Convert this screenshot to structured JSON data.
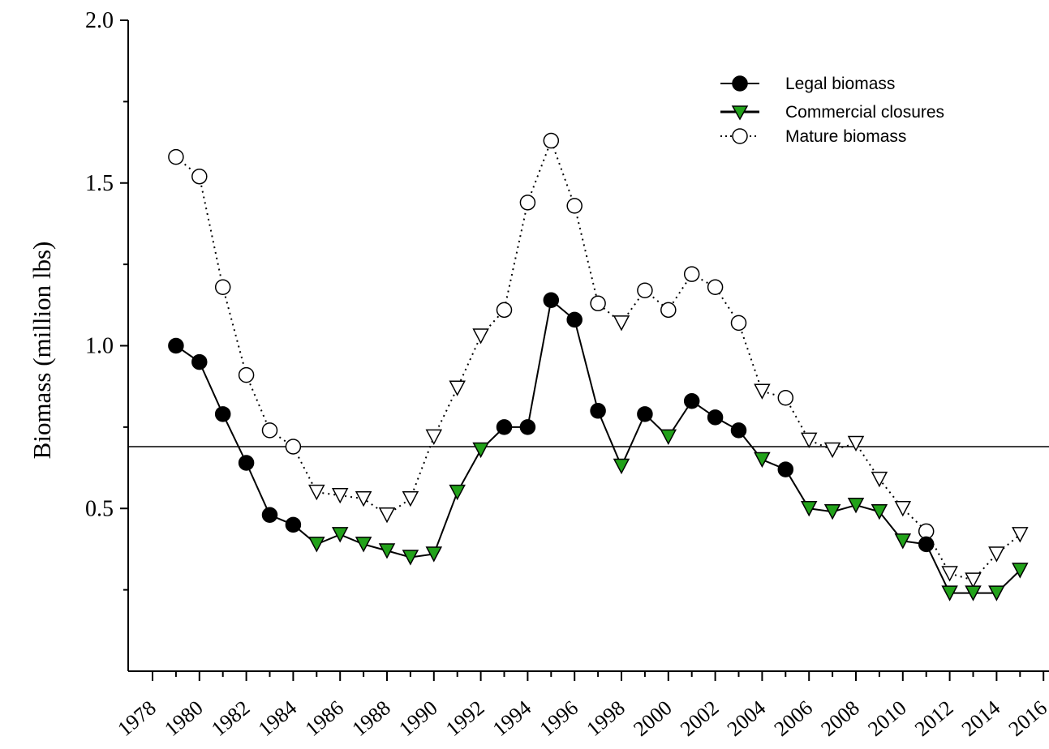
{
  "chart_data": {
    "type": "line",
    "ylabel": "Biomass (million lbs)",
    "xlabel": "",
    "ylim": [
      0,
      2.0
    ],
    "xlim": [
      1977,
      2016.3
    ],
    "yticks": [
      0.5,
      1.0,
      1.5,
      2.0
    ],
    "ytick_labels": [
      "0.5",
      "1.0",
      "1.5",
      "2.0"
    ],
    "xticks": [
      1978,
      1980,
      1982,
      1984,
      1986,
      1988,
      1990,
      1992,
      1994,
      1996,
      1998,
      2000,
      2002,
      2004,
      2006,
      2008,
      2010,
      2012,
      2014,
      2016
    ],
    "xtick_labels": [
      "1978",
      "1980",
      "1982",
      "1984",
      "1986",
      "1988",
      "1990",
      "1992",
      "1994",
      "1996",
      "1998",
      "2000",
      "2002",
      "2004",
      "2006",
      "2008",
      "2010",
      "2012",
      "2014",
      "2016"
    ],
    "reference_line": 0.69,
    "legend": {
      "position": "top-right"
    },
    "grid": false,
    "series": [
      {
        "name": "Legal biomass",
        "line_style": "solid",
        "marker": "circle",
        "closure_color": "#22a21a",
        "x": [
          1979,
          1980,
          1981,
          1982,
          1983,
          1984,
          1985,
          1986,
          1987,
          1988,
          1989,
          1990,
          1991,
          1992,
          1993,
          1994,
          1995,
          1996,
          1997,
          1998,
          1999,
          2000,
          2001,
          2002,
          2003,
          2004,
          2005,
          2006,
          2007,
          2008,
          2009,
          2010,
          2011,
          2012,
          2013,
          2014,
          2015
        ],
        "values": [
          1.0,
          0.95,
          0.79,
          0.64,
          0.48,
          0.45,
          0.39,
          0.42,
          0.39,
          0.37,
          0.35,
          0.36,
          0.55,
          0.68,
          0.75,
          0.75,
          1.14,
          1.08,
          0.8,
          0.63,
          0.79,
          0.72,
          0.83,
          0.78,
          0.74,
          0.65,
          0.62,
          0.5,
          0.49,
          0.51,
          0.49,
          0.4,
          0.39,
          0.24,
          0.24,
          0.24,
          0.31
        ],
        "closures": [
          false,
          false,
          false,
          false,
          false,
          false,
          true,
          true,
          true,
          true,
          true,
          true,
          true,
          true,
          false,
          false,
          false,
          false,
          false,
          true,
          false,
          true,
          false,
          false,
          false,
          true,
          false,
          true,
          true,
          true,
          true,
          true,
          false,
          true,
          true,
          true,
          true
        ]
      },
      {
        "name": "Mature biomass",
        "line_style": "dotted",
        "marker": "open-circle",
        "x": [
          1979,
          1980,
          1981,
          1982,
          1983,
          1984,
          1985,
          1986,
          1987,
          1988,
          1989,
          1990,
          1991,
          1992,
          1993,
          1994,
          1995,
          1996,
          1997,
          1998,
          1999,
          2000,
          2001,
          2002,
          2003,
          2004,
          2005,
          2006,
          2007,
          2008,
          2009,
          2010,
          2011,
          2012,
          2013,
          2014,
          2015
        ],
        "values": [
          1.58,
          1.52,
          1.18,
          0.91,
          0.74,
          0.69,
          0.55,
          0.54,
          0.53,
          0.48,
          0.53,
          0.72,
          0.87,
          1.03,
          1.11,
          1.44,
          1.63,
          1.43,
          1.13,
          1.07,
          1.17,
          1.11,
          1.22,
          1.18,
          1.07,
          0.86,
          0.84,
          0.71,
          0.68,
          0.7,
          0.59,
          0.5,
          0.43,
          0.3,
          0.28,
          0.36,
          0.42
        ],
        "closures": [
          false,
          false,
          false,
          false,
          false,
          false,
          true,
          true,
          true,
          true,
          true,
          true,
          true,
          true,
          false,
          false,
          false,
          false,
          false,
          true,
          false,
          false,
          false,
          false,
          false,
          true,
          false,
          true,
          true,
          true,
          true,
          true,
          false,
          true,
          true,
          true,
          true
        ]
      }
    ],
    "legend_entries": [
      "Legal biomass",
      "Commercial closures",
      "Mature biomass"
    ]
  }
}
